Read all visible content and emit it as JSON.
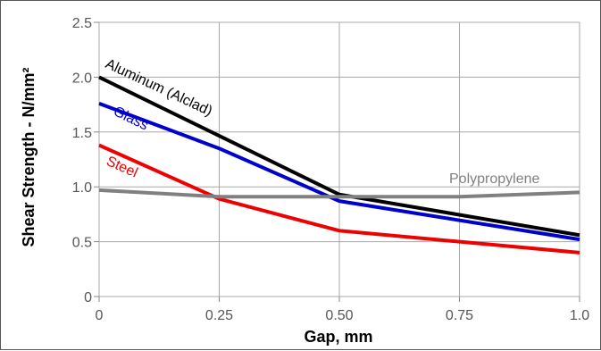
{
  "chart_data": {
    "type": "line",
    "xlabel": "Gap, mm",
    "ylabel": "Shear Strength - N/mm²",
    "xlim": [
      0,
      1.0
    ],
    "ylim": [
      0,
      2.5
    ],
    "x_ticks": [
      0,
      0.25,
      0.5,
      0.75,
      1.0
    ],
    "x_tick_labels": [
      "0",
      "0.25",
      "0.50",
      "0.75",
      "1.0"
    ],
    "y_ticks": [
      0,
      0.5,
      1.0,
      1.5,
      2.0,
      2.5
    ],
    "y_tick_labels": [
      "0",
      "0.5",
      "1.0",
      "1.5",
      "2.0",
      "2.5"
    ],
    "grid": true,
    "legend": "inline labels",
    "series": [
      {
        "name": "Aluminum (Alclad)",
        "color": "#000000",
        "x": [
          0,
          0.5,
          1.0
        ],
        "y": [
          2.0,
          0.93,
          0.56
        ]
      },
      {
        "name": "Glass",
        "color": "#0000cc",
        "x": [
          0,
          0.25,
          0.5,
          1.0
        ],
        "y": [
          1.76,
          1.35,
          0.87,
          0.52
        ]
      },
      {
        "name": "Steel",
        "color": "#ee0000",
        "x": [
          0,
          0.25,
          0.5,
          1.0
        ],
        "y": [
          1.38,
          0.89,
          0.6,
          0.4
        ]
      },
      {
        "name": "Polypropylene",
        "color": "#808080",
        "x": [
          0,
          0.25,
          0.5,
          0.75,
          1.0
        ],
        "y": [
          0.97,
          0.91,
          0.91,
          0.91,
          0.95
        ]
      }
    ]
  }
}
